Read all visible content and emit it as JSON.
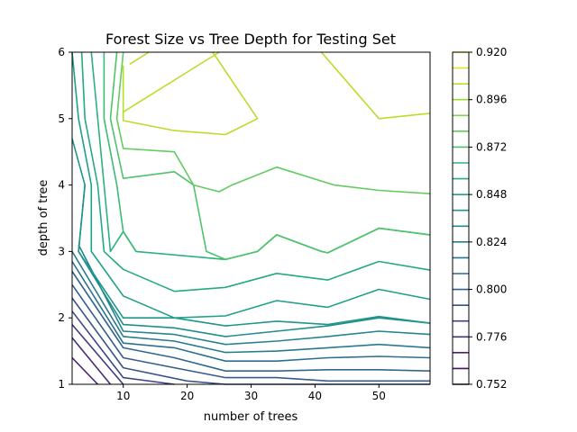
{
  "chart_data": {
    "type": "contour",
    "title": "Forest Size vs Tree Depth for Testing Set",
    "xlabel": "number of trees",
    "ylabel": "depth of tree",
    "xlim": [
      2,
      58
    ],
    "ylim": [
      1,
      6
    ],
    "x_ticks": [
      10,
      20,
      30,
      40,
      50
    ],
    "y_ticks": [
      1,
      2,
      3,
      4,
      5,
      6
    ],
    "colorbar": {
      "min": 0.752,
      "max": 0.92,
      "step": 0.008,
      "tick_values": [
        0.752,
        0.776,
        0.8,
        0.824,
        0.848,
        0.872,
        0.896,
        0.92
      ],
      "tick_labels": [
        "0.752",
        "0.776",
        "0.800",
        "0.824",
        "0.848",
        "0.872",
        "0.896",
        "0.920"
      ],
      "colormap": "viridis"
    },
    "contours": [
      {
        "level": 0.768,
        "color": "#482173",
        "points": [
          [
            2,
            1.4
          ],
          [
            6,
            1
          ]
        ]
      },
      {
        "level": 0.776,
        "color": "#472c7a",
        "points": [
          [
            2,
            1.7
          ],
          [
            8,
            1
          ]
        ]
      },
      {
        "level": 0.784,
        "color": "#443983",
        "points": [
          [
            2,
            1.9
          ],
          [
            10,
            1
          ]
        ]
      },
      {
        "level": 0.792,
        "color": "#3f4788",
        "points": [
          [
            2,
            2.1
          ],
          [
            10,
            1.1
          ],
          [
            18,
            1
          ]
        ]
      },
      {
        "level": 0.8,
        "color": "#3b528b",
        "points": [
          [
            2,
            2.3
          ],
          [
            10,
            1.25
          ],
          [
            20,
            1.05
          ],
          [
            26,
            1
          ],
          [
            58,
            1
          ]
        ]
      },
      {
        "level": 0.808,
        "color": "#365c8d",
        "points": [
          [
            2,
            2.5
          ],
          [
            10,
            1.4
          ],
          [
            18,
            1.25
          ],
          [
            26,
            1.1
          ],
          [
            34,
            1.1
          ],
          [
            42,
            1.05
          ],
          [
            58,
            1.05
          ]
        ]
      },
      {
        "level": 0.816,
        "color": "#31668e",
        "points": [
          [
            2,
            2.7
          ],
          [
            10,
            1.55
          ],
          [
            18,
            1.4
          ],
          [
            26,
            1.2
          ],
          [
            34,
            1.2
          ],
          [
            42,
            1.22
          ],
          [
            50,
            1.22
          ],
          [
            58,
            1.2
          ]
        ]
      },
      {
        "level": 0.824,
        "color": "#2d708e",
        "points": [
          [
            2,
            2.85
          ],
          [
            10,
            1.62
          ],
          [
            18,
            1.55
          ],
          [
            26,
            1.35
          ],
          [
            34,
            1.35
          ],
          [
            42,
            1.4
          ],
          [
            50,
            1.42
          ],
          [
            58,
            1.4
          ]
        ]
      },
      {
        "level": 0.832,
        "color": "#297a8e",
        "points": [
          [
            2,
            3.0
          ],
          [
            10,
            1.72
          ],
          [
            18,
            1.65
          ],
          [
            26,
            1.48
          ],
          [
            34,
            1.5
          ],
          [
            42,
            1.55
          ],
          [
            50,
            1.6
          ],
          [
            58,
            1.55
          ]
        ]
      },
      {
        "level": 0.84,
        "color": "#26838f",
        "points": [
          [
            3,
            3.1
          ],
          [
            10,
            1.8
          ],
          [
            18,
            1.75
          ],
          [
            26,
            1.6
          ],
          [
            34,
            1.65
          ],
          [
            42,
            1.72
          ],
          [
            50,
            1.8
          ],
          [
            58,
            1.75
          ]
        ]
      },
      {
        "level": 0.848,
        "color": "#228d8d",
        "points": [
          [
            4,
            4.0
          ],
          [
            3,
            3.0
          ],
          [
            10,
            1.9
          ],
          [
            18,
            1.85
          ],
          [
            26,
            1.72
          ],
          [
            34,
            1.8
          ],
          [
            42,
            1.88
          ],
          [
            50,
            2.0
          ],
          [
            58,
            1.92
          ]
        ]
      },
      {
        "level": 0.856,
        "color": "#1f968b",
        "points": [
          [
            2,
            4.7
          ],
          [
            4,
            4.0
          ],
          [
            3,
            3.0
          ],
          [
            10,
            2.0
          ],
          [
            18,
            2.0
          ],
          [
            26,
            1.88
          ],
          [
            34,
            1.95
          ],
          [
            42,
            1.9
          ],
          [
            50,
            2.02
          ],
          [
            58,
            1.92
          ]
        ]
      },
      {
        "level": 0.864,
        "color": "#1fa088",
        "points": [
          [
            2,
            6
          ],
          [
            3,
            5.0
          ],
          [
            5,
            4.0
          ],
          [
            5,
            3.0
          ],
          [
            10,
            2.33
          ],
          [
            18,
            2.0
          ],
          [
            26,
            2.03
          ],
          [
            34,
            2.26
          ],
          [
            42,
            2.16
          ],
          [
            50,
            2.43
          ],
          [
            58,
            2.28
          ]
        ]
      },
      {
        "level": 0.872,
        "color": "#24aa83",
        "points": [
          [
            3.5,
            6
          ],
          [
            4,
            5.0
          ],
          [
            6,
            4.0
          ],
          [
            7,
            3.0
          ],
          [
            10,
            2.73
          ],
          [
            18,
            2.4
          ],
          [
            26,
            2.46
          ],
          [
            34,
            2.67
          ],
          [
            42,
            2.57
          ],
          [
            50,
            2.85
          ],
          [
            58,
            2.72
          ]
        ]
      },
      {
        "level": 0.88,
        "color": "#2db27d",
        "points": [
          [
            5,
            6
          ],
          [
            6,
            5.0
          ],
          [
            7,
            4.0
          ],
          [
            8,
            3.0
          ],
          [
            10,
            3.3
          ],
          [
            12,
            3.0
          ],
          [
            26,
            2.88
          ],
          [
            31,
            3.0
          ],
          [
            34,
            3.25
          ],
          [
            41,
            3.0
          ],
          [
            42,
            2.98
          ],
          [
            50,
            3.35
          ],
          [
            58,
            3.25
          ]
        ]
      },
      {
        "level": 0.888,
        "color": "#3bbb75",
        "points": [
          [
            7,
            6
          ],
          [
            7,
            5.0
          ],
          [
            9,
            4.0
          ],
          [
            10,
            3.3
          ],
          [
            12,
            3.0
          ]
        ]
      },
      {
        "level": 0.896,
        "color": "#4ec36b",
        "points": [
          [
            9,
            6
          ],
          [
            8,
            5.0
          ],
          [
            10,
            4.1
          ],
          [
            18,
            4.2
          ],
          [
            21,
            4.0
          ],
          [
            23,
            3.0
          ],
          [
            26,
            2.88
          ],
          [
            31,
            3.0
          ],
          [
            34,
            3.25
          ],
          [
            41,
            3.0
          ],
          [
            42,
            2.98
          ],
          [
            50,
            3.35
          ],
          [
            58,
            3.25
          ]
        ]
      },
      {
        "level": 0.904,
        "color": "#63cb5f",
        "points": [
          [
            10,
            6
          ],
          [
            9,
            5.0
          ],
          [
            10,
            4.55
          ],
          [
            18,
            4.5
          ],
          [
            21,
            4.0
          ],
          [
            25,
            3.9
          ],
          [
            27,
            4.0
          ],
          [
            34,
            4.27
          ],
          [
            43,
            4.0
          ],
          [
            50,
            3.92
          ],
          [
            58,
            3.87
          ]
        ]
      },
      {
        "level": 0.912,
        "color": "#b8de29",
        "points": [
          [
            10,
            5.8
          ],
          [
            10,
            4.97
          ],
          [
            18,
            4.82
          ],
          [
            26,
            4.76
          ],
          [
            31,
            5.0
          ],
          [
            24,
            6
          ]
        ]
      },
      {
        "level": 0.912,
        "color": "#b8de29",
        "points": [
          [
            11,
            5.82
          ],
          [
            14,
            6
          ]
        ]
      },
      {
        "level": 0.912,
        "color": "#b8de29",
        "points": [
          [
            41,
            6
          ],
          [
            50,
            5.0
          ],
          [
            58,
            5.08
          ]
        ]
      },
      {
        "level": 0.912,
        "color": "#b8de29",
        "points": [
          [
            10,
            5.0
          ],
          [
            10,
            5.1
          ],
          [
            25,
            6
          ]
        ]
      }
    ]
  }
}
